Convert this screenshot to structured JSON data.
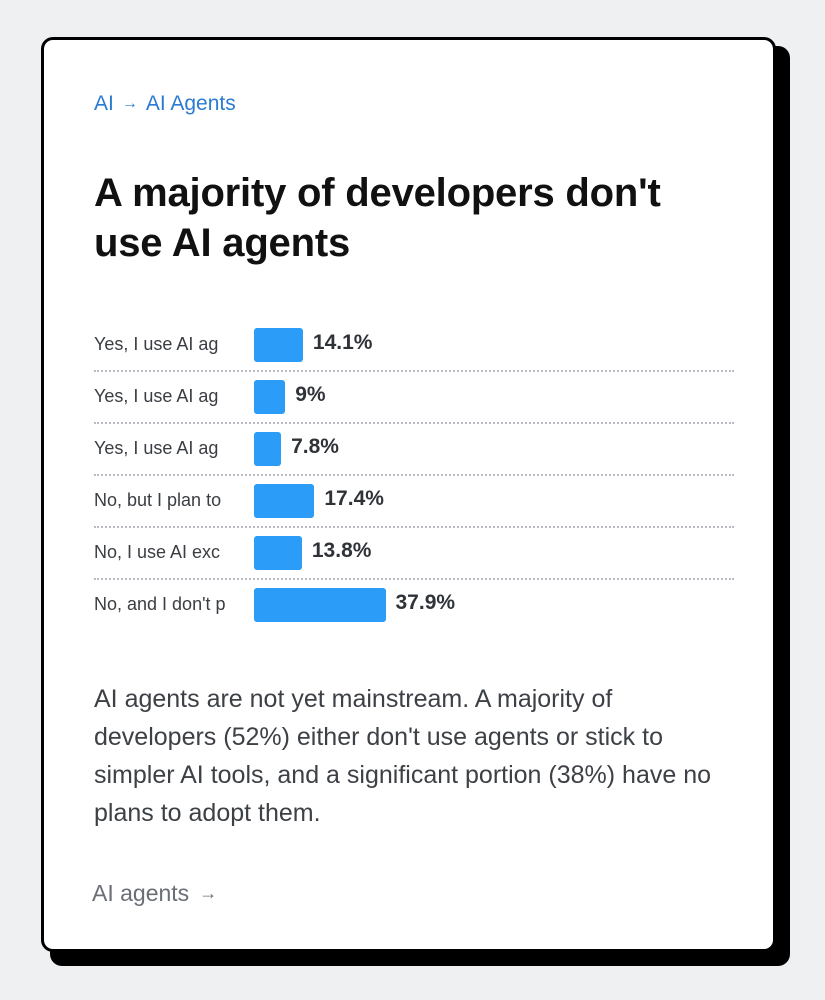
{
  "breadcrumb": {
    "parent": "AI",
    "separator": "→",
    "current": "AI Agents"
  },
  "title": "A majority of developers don't use AI agents",
  "chart_data": {
    "type": "bar",
    "orientation": "horizontal",
    "title": "A majority of developers don't use AI agents",
    "categories": [
      "Yes, I use AI ag",
      "Yes, I use AI ag",
      "Yes, I use AI ag",
      "No, but I plan to",
      "No, I use AI exc",
      "No, and I don't p"
    ],
    "values": [
      14.1,
      9,
      7.8,
      17.4,
      13.8,
      37.9
    ],
    "value_labels": [
      "14.1%",
      "9%",
      "7.8%",
      "17.4%",
      "13.8%",
      "37.9%"
    ],
    "unit": "%",
    "xlim": [
      0,
      100
    ],
    "bar_color": "#2b9cf8"
  },
  "description": "AI agents are not yet mainstream. A majority of developers (52%) either don't use agents or stick to simpler AI tools, and a significant portion (38%) have no plans to adopt them.",
  "footer_link": {
    "label": "AI agents",
    "arrow": "→"
  }
}
